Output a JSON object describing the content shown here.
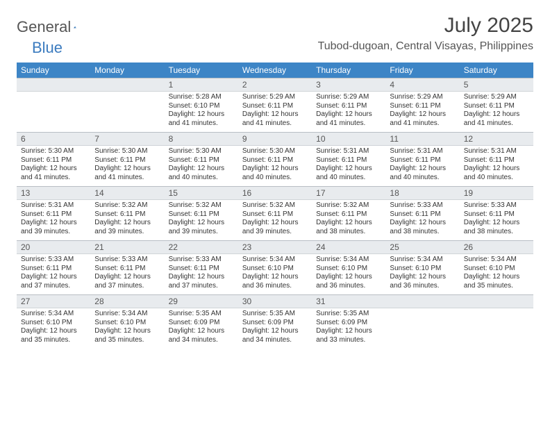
{
  "logo": {
    "text_general": "General",
    "text_blue": "Blue"
  },
  "title": "July 2025",
  "location": "Tubod-dugoan, Central Visayas, Philippines",
  "colors": {
    "header_bg": "#3d85c6",
    "header_text": "#ffffff",
    "daynum_bg": "#e8ebee",
    "body_bg": "#ffffff",
    "text": "#333333",
    "logo_blue": "#3b7bbf",
    "logo_gray": "#555555"
  },
  "day_names": [
    "Sunday",
    "Monday",
    "Tuesday",
    "Wednesday",
    "Thursday",
    "Friday",
    "Saturday"
  ],
  "weeks": [
    [
      {
        "n": "",
        "sunrise": "",
        "sunset": "",
        "daylight": ""
      },
      {
        "n": "",
        "sunrise": "",
        "sunset": "",
        "daylight": ""
      },
      {
        "n": "1",
        "sunrise": "Sunrise: 5:28 AM",
        "sunset": "Sunset: 6:10 PM",
        "daylight": "Daylight: 12 hours and 41 minutes."
      },
      {
        "n": "2",
        "sunrise": "Sunrise: 5:29 AM",
        "sunset": "Sunset: 6:11 PM",
        "daylight": "Daylight: 12 hours and 41 minutes."
      },
      {
        "n": "3",
        "sunrise": "Sunrise: 5:29 AM",
        "sunset": "Sunset: 6:11 PM",
        "daylight": "Daylight: 12 hours and 41 minutes."
      },
      {
        "n": "4",
        "sunrise": "Sunrise: 5:29 AM",
        "sunset": "Sunset: 6:11 PM",
        "daylight": "Daylight: 12 hours and 41 minutes."
      },
      {
        "n": "5",
        "sunrise": "Sunrise: 5:29 AM",
        "sunset": "Sunset: 6:11 PM",
        "daylight": "Daylight: 12 hours and 41 minutes."
      }
    ],
    [
      {
        "n": "6",
        "sunrise": "Sunrise: 5:30 AM",
        "sunset": "Sunset: 6:11 PM",
        "daylight": "Daylight: 12 hours and 41 minutes."
      },
      {
        "n": "7",
        "sunrise": "Sunrise: 5:30 AM",
        "sunset": "Sunset: 6:11 PM",
        "daylight": "Daylight: 12 hours and 41 minutes."
      },
      {
        "n": "8",
        "sunrise": "Sunrise: 5:30 AM",
        "sunset": "Sunset: 6:11 PM",
        "daylight": "Daylight: 12 hours and 40 minutes."
      },
      {
        "n": "9",
        "sunrise": "Sunrise: 5:30 AM",
        "sunset": "Sunset: 6:11 PM",
        "daylight": "Daylight: 12 hours and 40 minutes."
      },
      {
        "n": "10",
        "sunrise": "Sunrise: 5:31 AM",
        "sunset": "Sunset: 6:11 PM",
        "daylight": "Daylight: 12 hours and 40 minutes."
      },
      {
        "n": "11",
        "sunrise": "Sunrise: 5:31 AM",
        "sunset": "Sunset: 6:11 PM",
        "daylight": "Daylight: 12 hours and 40 minutes."
      },
      {
        "n": "12",
        "sunrise": "Sunrise: 5:31 AM",
        "sunset": "Sunset: 6:11 PM",
        "daylight": "Daylight: 12 hours and 40 minutes."
      }
    ],
    [
      {
        "n": "13",
        "sunrise": "Sunrise: 5:31 AM",
        "sunset": "Sunset: 6:11 PM",
        "daylight": "Daylight: 12 hours and 39 minutes."
      },
      {
        "n": "14",
        "sunrise": "Sunrise: 5:32 AM",
        "sunset": "Sunset: 6:11 PM",
        "daylight": "Daylight: 12 hours and 39 minutes."
      },
      {
        "n": "15",
        "sunrise": "Sunrise: 5:32 AM",
        "sunset": "Sunset: 6:11 PM",
        "daylight": "Daylight: 12 hours and 39 minutes."
      },
      {
        "n": "16",
        "sunrise": "Sunrise: 5:32 AM",
        "sunset": "Sunset: 6:11 PM",
        "daylight": "Daylight: 12 hours and 39 minutes."
      },
      {
        "n": "17",
        "sunrise": "Sunrise: 5:32 AM",
        "sunset": "Sunset: 6:11 PM",
        "daylight": "Daylight: 12 hours and 38 minutes."
      },
      {
        "n": "18",
        "sunrise": "Sunrise: 5:33 AM",
        "sunset": "Sunset: 6:11 PM",
        "daylight": "Daylight: 12 hours and 38 minutes."
      },
      {
        "n": "19",
        "sunrise": "Sunrise: 5:33 AM",
        "sunset": "Sunset: 6:11 PM",
        "daylight": "Daylight: 12 hours and 38 minutes."
      }
    ],
    [
      {
        "n": "20",
        "sunrise": "Sunrise: 5:33 AM",
        "sunset": "Sunset: 6:11 PM",
        "daylight": "Daylight: 12 hours and 37 minutes."
      },
      {
        "n": "21",
        "sunrise": "Sunrise: 5:33 AM",
        "sunset": "Sunset: 6:11 PM",
        "daylight": "Daylight: 12 hours and 37 minutes."
      },
      {
        "n": "22",
        "sunrise": "Sunrise: 5:33 AM",
        "sunset": "Sunset: 6:11 PM",
        "daylight": "Daylight: 12 hours and 37 minutes."
      },
      {
        "n": "23",
        "sunrise": "Sunrise: 5:34 AM",
        "sunset": "Sunset: 6:10 PM",
        "daylight": "Daylight: 12 hours and 36 minutes."
      },
      {
        "n": "24",
        "sunrise": "Sunrise: 5:34 AM",
        "sunset": "Sunset: 6:10 PM",
        "daylight": "Daylight: 12 hours and 36 minutes."
      },
      {
        "n": "25",
        "sunrise": "Sunrise: 5:34 AM",
        "sunset": "Sunset: 6:10 PM",
        "daylight": "Daylight: 12 hours and 36 minutes."
      },
      {
        "n": "26",
        "sunrise": "Sunrise: 5:34 AM",
        "sunset": "Sunset: 6:10 PM",
        "daylight": "Daylight: 12 hours and 35 minutes."
      }
    ],
    [
      {
        "n": "27",
        "sunrise": "Sunrise: 5:34 AM",
        "sunset": "Sunset: 6:10 PM",
        "daylight": "Daylight: 12 hours and 35 minutes."
      },
      {
        "n": "28",
        "sunrise": "Sunrise: 5:34 AM",
        "sunset": "Sunset: 6:10 PM",
        "daylight": "Daylight: 12 hours and 35 minutes."
      },
      {
        "n": "29",
        "sunrise": "Sunrise: 5:35 AM",
        "sunset": "Sunset: 6:09 PM",
        "daylight": "Daylight: 12 hours and 34 minutes."
      },
      {
        "n": "30",
        "sunrise": "Sunrise: 5:35 AM",
        "sunset": "Sunset: 6:09 PM",
        "daylight": "Daylight: 12 hours and 34 minutes."
      },
      {
        "n": "31",
        "sunrise": "Sunrise: 5:35 AM",
        "sunset": "Sunset: 6:09 PM",
        "daylight": "Daylight: 12 hours and 33 minutes."
      },
      {
        "n": "",
        "sunrise": "",
        "sunset": "",
        "daylight": ""
      },
      {
        "n": "",
        "sunrise": "",
        "sunset": "",
        "daylight": ""
      }
    ]
  ]
}
